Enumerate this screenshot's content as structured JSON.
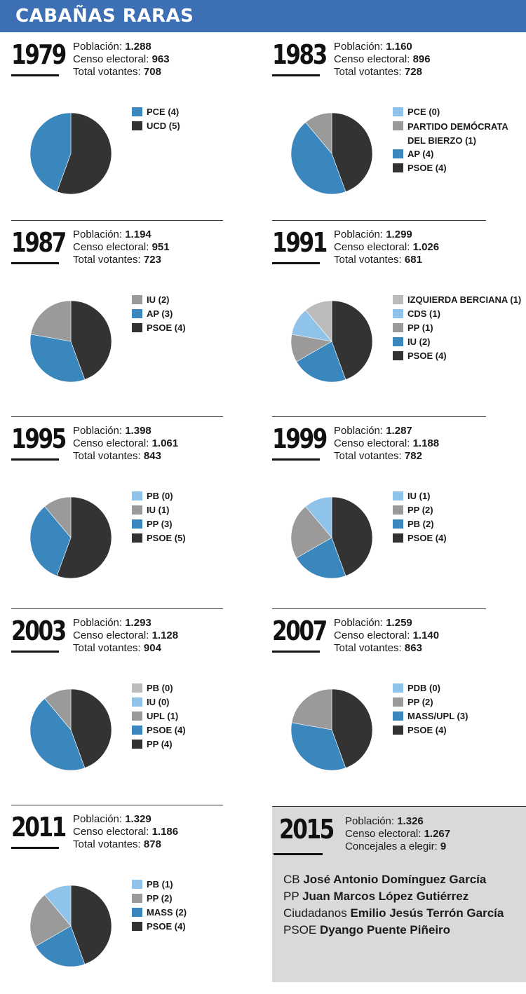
{
  "title": "CABAÑAS RARAS",
  "labels": {
    "poblacion": "Población: ",
    "censo": "Censo electoral: ",
    "votantes": "Total votantes: ",
    "concejales": "Concejales a elegir: "
  },
  "colors": {
    "dark": "#333333",
    "mid_blue": "#3a87bd",
    "light_blue": "#8fc3e9",
    "gray": "#9a9a9a",
    "light_gray": "#bbbbbb",
    "header": "#3d6fb5"
  },
  "chart_data": [
    {
      "type": "pie",
      "year": "1979",
      "poblacion": "1.288",
      "censo": "963",
      "votantes": "708",
      "slices": [
        {
          "label": "PCE (4)",
          "value": 4,
          "color": "#3a87bd"
        },
        {
          "label": "UCD (5)",
          "value": 5,
          "color": "#333333"
        }
      ]
    },
    {
      "type": "pie",
      "year": "1983",
      "poblacion": "1.160",
      "censo": "896",
      "votantes": "728",
      "slices": [
        {
          "label": "PCE (0)",
          "value": 0,
          "color": "#8fc3e9"
        },
        {
          "label": "PARTIDO DEMÓCRATA DEL BIERZO (1)",
          "value": 1,
          "color": "#9a9a9a"
        },
        {
          "label": "AP (4)",
          "value": 4,
          "color": "#3a87bd"
        },
        {
          "label": "PSOE (4)",
          "value": 4,
          "color": "#333333"
        }
      ]
    },
    {
      "type": "pie",
      "year": "1987",
      "poblacion": "1.194",
      "censo": "951",
      "votantes": "723",
      "slices": [
        {
          "label": "IU (2)",
          "value": 2,
          "color": "#9a9a9a"
        },
        {
          "label": "AP (3)",
          "value": 3,
          "color": "#3a87bd"
        },
        {
          "label": "PSOE (4)",
          "value": 4,
          "color": "#333333"
        }
      ]
    },
    {
      "type": "pie",
      "year": "1991",
      "poblacion": "1.299",
      "censo": "1.026",
      "votantes": "681",
      "slices": [
        {
          "label": "IZQUIERDA BERCIANA (1)",
          "value": 1,
          "color": "#bbbbbb"
        },
        {
          "label": "CDS (1)",
          "value": 1,
          "color": "#8fc3e9"
        },
        {
          "label": "PP (1)",
          "value": 1,
          "color": "#9a9a9a"
        },
        {
          "label": "IU (2)",
          "value": 2,
          "color": "#3a87bd"
        },
        {
          "label": "PSOE (4)",
          "value": 4,
          "color": "#333333"
        }
      ]
    },
    {
      "type": "pie",
      "year": "1995",
      "poblacion": "1.398",
      "censo": "1.061",
      "votantes": "843",
      "slices": [
        {
          "label": "PB (0)",
          "value": 0,
          "color": "#8fc3e9"
        },
        {
          "label": "IU (1)",
          "value": 1,
          "color": "#9a9a9a"
        },
        {
          "label": "PP (3)",
          "value": 3,
          "color": "#3a87bd"
        },
        {
          "label": "PSOE (5)",
          "value": 5,
          "color": "#333333"
        }
      ]
    },
    {
      "type": "pie",
      "year": "1999",
      "poblacion": "1.287",
      "censo": "1.188",
      "votantes": "782",
      "slices": [
        {
          "label": "IU (1)",
          "value": 1,
          "color": "#8fc3e9"
        },
        {
          "label": "PP (2)",
          "value": 2,
          "color": "#9a9a9a"
        },
        {
          "label": "PB (2)",
          "value": 2,
          "color": "#3a87bd"
        },
        {
          "label": "PSOE (4)",
          "value": 4,
          "color": "#333333"
        }
      ]
    },
    {
      "type": "pie",
      "year": "2003",
      "poblacion": "1.293",
      "censo": "1.128",
      "votantes": "904",
      "slices": [
        {
          "label": "PB (0)",
          "value": 0,
          "color": "#bbbbbb"
        },
        {
          "label": "IU (0)",
          "value": 0,
          "color": "#8fc3e9"
        },
        {
          "label": "UPL (1)",
          "value": 1,
          "color": "#9a9a9a"
        },
        {
          "label": "PSOE (4)",
          "value": 4,
          "color": "#3a87bd"
        },
        {
          "label": "PP (4)",
          "value": 4,
          "color": "#333333"
        }
      ]
    },
    {
      "type": "pie",
      "year": "2007",
      "poblacion": "1.259",
      "censo": "1.140",
      "votantes": "863",
      "slices": [
        {
          "label": "PDB (0)",
          "value": 0,
          "color": "#8fc3e9"
        },
        {
          "label": "PP (2)",
          "value": 2,
          "color": "#9a9a9a"
        },
        {
          "label": "MASS/UPL (3)",
          "value": 3,
          "color": "#3a87bd"
        },
        {
          "label": "PSOE (4)",
          "value": 4,
          "color": "#333333"
        }
      ]
    },
    {
      "type": "pie",
      "year": "2011",
      "poblacion": "1.329",
      "censo": "1.186",
      "votantes": "878",
      "slices": [
        {
          "label": "PB (1)",
          "value": 1,
          "color": "#8fc3e9"
        },
        {
          "label": "PP (2)",
          "value": 2,
          "color": "#9a9a9a"
        },
        {
          "label": "MASS (2)",
          "value": 2,
          "color": "#3a87bd"
        },
        {
          "label": "PSOE (4)",
          "value": 4,
          "color": "#333333"
        }
      ]
    }
  ],
  "e2015": {
    "year": "2015",
    "poblacion": "1.326",
    "censo": "1.267",
    "concejales": "9",
    "candidates": [
      {
        "party": "CB ",
        "name": "José Antonio Domínguez García"
      },
      {
        "party": "PP ",
        "name": "Juan Marcos López Gutiérrez"
      },
      {
        "party": "Ciudadanos ",
        "name": "Emilio Jesús Terrón García"
      },
      {
        "party": "PSOE ",
        "name": "Dyango Puente Piñeiro"
      }
    ]
  }
}
